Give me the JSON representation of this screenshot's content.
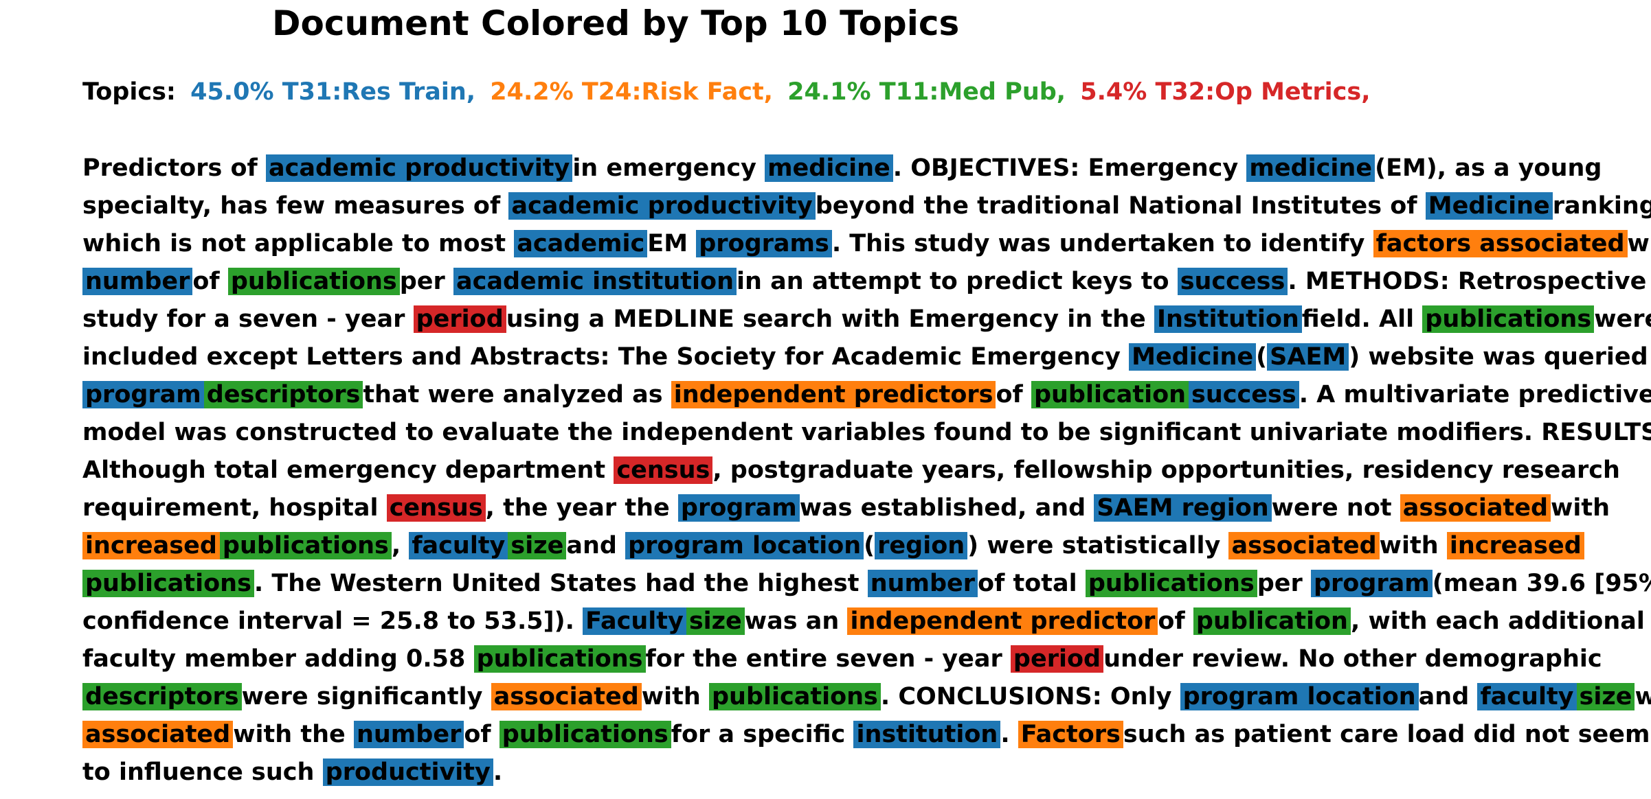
{
  "title": "Document Colored by Top 10 Topics",
  "topics_label": "Topics:",
  "colors": {
    "T31": "#1f77b4",
    "T24": "#ff7f0e",
    "T11": "#2ca02c",
    "T32": "#d62728"
  },
  "topics": [
    {
      "text": "45.0% T31:Res Train,",
      "color": "#1f77b4"
    },
    {
      "text": "24.2% T24:Risk Fact,",
      "color": "#ff7f0e"
    },
    {
      "text": "24.1% T11:Med Pub,",
      "color": "#2ca02c"
    },
    {
      "text": "5.4% T32:Op Metrics,",
      "color": "#d62728"
    }
  ],
  "lines": [
    [
      [
        "Predictors of ",
        ""
      ],
      [
        "academic productivity",
        "T31"
      ],
      [
        "in emergency ",
        ""
      ],
      [
        "medicine",
        "T31"
      ],
      [
        ". OBJECTIVES: Emergency ",
        ""
      ],
      [
        "medicine",
        "T31"
      ],
      [
        "(EM), as a young",
        ""
      ]
    ],
    [
      [
        "specialty, has few measures of ",
        ""
      ],
      [
        "academic productivity",
        "T31"
      ],
      [
        "beyond the traditional National Institutes of ",
        ""
      ],
      [
        "Medicine",
        "T31"
      ],
      [
        "ranking,",
        ""
      ]
    ],
    [
      [
        "which is not applicable to most ",
        ""
      ],
      [
        "academic",
        "T31"
      ],
      [
        "EM ",
        ""
      ],
      [
        "programs",
        "T31"
      ],
      [
        ". This study was undertaken to identify ",
        ""
      ],
      [
        "factors associated",
        "T24"
      ],
      [
        "with",
        ""
      ]
    ],
    [
      [
        "number",
        "T31"
      ],
      [
        "of ",
        ""
      ],
      [
        "publications",
        "T11"
      ],
      [
        "per ",
        ""
      ],
      [
        "academic institution",
        "T31"
      ],
      [
        "in an attempt to predict keys to ",
        ""
      ],
      [
        "success",
        "T31"
      ],
      [
        ". METHODS: Retrospective",
        ""
      ]
    ],
    [
      [
        "study for a seven - year ",
        ""
      ],
      [
        "period",
        "T32"
      ],
      [
        "using a MEDLINE search with Emergency in the ",
        ""
      ],
      [
        "Institution",
        "T31"
      ],
      [
        "field. All ",
        ""
      ],
      [
        "publications",
        "T11"
      ],
      [
        "were",
        ""
      ]
    ],
    [
      [
        "included except Letters and Abstracts: The Society for Academic Emergency ",
        ""
      ],
      [
        "Medicine",
        "T31"
      ],
      [
        "(",
        ""
      ],
      [
        "SAEM",
        "T31"
      ],
      [
        ") website was queried for",
        ""
      ]
    ],
    [
      [
        "program",
        "T31"
      ],
      [
        "descriptors",
        "T11"
      ],
      [
        "that were analyzed as ",
        ""
      ],
      [
        "independent predictors",
        "T24"
      ],
      [
        "of ",
        ""
      ],
      [
        "publication",
        "T11"
      ],
      [
        "success",
        "T31"
      ],
      [
        ". A multivariate predictive",
        ""
      ]
    ],
    [
      [
        "model was constructed to evaluate the independent variables found to be significant univariate modifiers. RESULTS:",
        ""
      ]
    ],
    [
      [
        "Although total emergency department ",
        ""
      ],
      [
        "census",
        "T32"
      ],
      [
        ", postgraduate years, fellowship opportunities, residency research",
        ""
      ]
    ],
    [
      [
        "requirement, hospital ",
        ""
      ],
      [
        "census",
        "T32"
      ],
      [
        ", the year the ",
        ""
      ],
      [
        "program",
        "T31"
      ],
      [
        "was established, and ",
        ""
      ],
      [
        "SAEM region",
        "T31"
      ],
      [
        "were not ",
        ""
      ],
      [
        "associated",
        "T24"
      ],
      [
        "with",
        ""
      ]
    ],
    [
      [
        "increased",
        "T24"
      ],
      [
        "publications",
        "T11"
      ],
      [
        ", ",
        ""
      ],
      [
        "faculty",
        "T31"
      ],
      [
        "size",
        "T11"
      ],
      [
        "and ",
        ""
      ],
      [
        "program location",
        "T31"
      ],
      [
        "(",
        ""
      ],
      [
        "region",
        "T31"
      ],
      [
        ") were statistically ",
        ""
      ],
      [
        "associated",
        "T24"
      ],
      [
        "with ",
        ""
      ],
      [
        "increased",
        "T24"
      ]
    ],
    [
      [
        "publications",
        "T11"
      ],
      [
        ". The Western United States had the highest ",
        ""
      ],
      [
        "number",
        "T31"
      ],
      [
        "of total ",
        ""
      ],
      [
        "publications",
        "T11"
      ],
      [
        "per ",
        ""
      ],
      [
        "program",
        "T31"
      ],
      [
        "(mean 39.6 [95%",
        ""
      ]
    ],
    [
      [
        "confidence interval = 25.8 to 53.5]). ",
        ""
      ],
      [
        "Faculty",
        "T31"
      ],
      [
        "size",
        "T11"
      ],
      [
        "was an ",
        ""
      ],
      [
        "independent predictor",
        "T24"
      ],
      [
        "of ",
        ""
      ],
      [
        "publication",
        "T11"
      ],
      [
        ", with each additional",
        ""
      ]
    ],
    [
      [
        "faculty member adding 0.58 ",
        ""
      ],
      [
        "publications",
        "T11"
      ],
      [
        "for the entire seven - year ",
        ""
      ],
      [
        "period",
        "T32"
      ],
      [
        "under review. No other demographic",
        ""
      ]
    ],
    [
      [
        "descriptors",
        "T11"
      ],
      [
        "were significantly ",
        ""
      ],
      [
        "associated",
        "T24"
      ],
      [
        "with ",
        ""
      ],
      [
        "publications",
        "T11"
      ],
      [
        ". CONCLUSIONS: Only ",
        ""
      ],
      [
        "program location",
        "T31"
      ],
      [
        "and ",
        ""
      ],
      [
        "faculty",
        "T31"
      ],
      [
        "size",
        "T11"
      ],
      [
        "were",
        ""
      ]
    ],
    [
      [
        "associated",
        "T24"
      ],
      [
        "with the ",
        ""
      ],
      [
        "number",
        "T31"
      ],
      [
        "of ",
        ""
      ],
      [
        "publications",
        "T11"
      ],
      [
        "for a specific ",
        ""
      ],
      [
        "institution",
        "T31"
      ],
      [
        ". ",
        ""
      ],
      [
        "Factors",
        "T24"
      ],
      [
        "such as patient care load did not seem",
        ""
      ]
    ],
    [
      [
        "to influence such ",
        ""
      ],
      [
        "productivity",
        "T31"
      ],
      [
        ".",
        ""
      ]
    ]
  ]
}
